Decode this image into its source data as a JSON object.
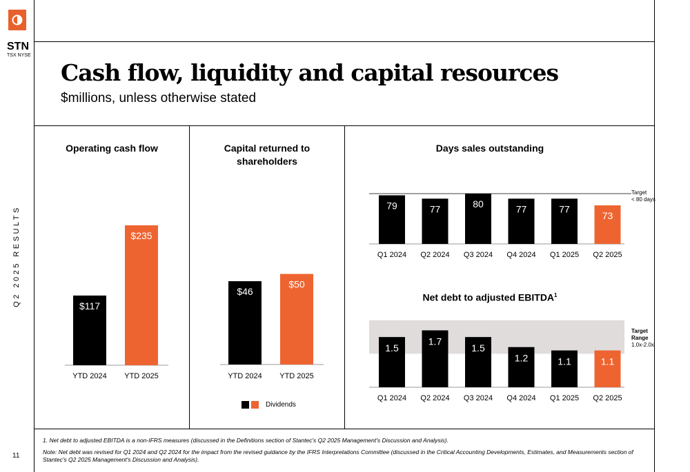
{
  "brand": {
    "ticker": "STN",
    "exchanges": "TSX NYSE",
    "logo_color": "#e8612c"
  },
  "side_label": "Q2 2025 RESULTS",
  "page_number": "11",
  "header": {
    "title": "Cash flow, liquidity and capital resources",
    "subtitle": "$millions, unless otherwise stated"
  },
  "colors": {
    "accent": "#ee6431",
    "bar": "#000000",
    "band": "#e0dcdb"
  },
  "legend": {
    "label": "Dividends"
  },
  "footnote": "1.    Net debt to adjusted EBITDA is a non-IFRS measures (discussed in the Definitions section of Stantec's Q2 2025 Management's Discussion and Analysis).",
  "note": "Note: Net debt was revised for Q1 2024 and Q2 2024 for the impact from the revised guidance by the IFRS Interpretations Committee (discussed in the Critical Accounting Developments, Estimates, and Measurements section of Stantec's Q2 2025 Management's Discussion and Analysis).",
  "chart_data": [
    {
      "type": "bar",
      "title": "Operating cash flow",
      "categories": [
        "YTD 2024",
        "YTD 2025"
      ],
      "values": [
        117,
        235
      ],
      "labels": [
        "$117",
        "$235"
      ],
      "ylim": [
        0,
        250
      ]
    },
    {
      "type": "bar",
      "title": "Capital returned to shareholders",
      "categories": [
        "YTD 2024",
        "YTD 2025"
      ],
      "values": [
        46,
        50
      ],
      "labels": [
        "$46",
        "$50"
      ],
      "ylim": [
        0,
        70
      ]
    },
    {
      "type": "bar",
      "title": "Days sales outstanding",
      "categories": [
        "Q1 2024",
        "Q2 2024",
        "Q3 2024",
        "Q4 2024",
        "Q1 2025",
        "Q2 2025"
      ],
      "values": [
        79,
        77,
        80,
        77,
        77,
        73
      ],
      "labels": [
        "79",
        "77",
        "80",
        "77",
        "77",
        "73"
      ],
      "ylim": [
        50,
        80
      ],
      "target_line": {
        "value": 80,
        "label_line1": "Target",
        "label_line2": "< 80 days"
      }
    },
    {
      "type": "bar",
      "title": "Net debt to adjusted EBITDA",
      "title_superscript": "1",
      "categories": [
        "Q1 2024",
        "Q2 2024",
        "Q3 2024",
        "Q4 2024",
        "Q1 2025",
        "Q2 2025"
      ],
      "values": [
        1.5,
        1.7,
        1.5,
        1.2,
        1.1,
        1.1
      ],
      "labels": [
        "1.5",
        "1.7",
        "1.5",
        "1.2",
        "1.1",
        "1.1"
      ],
      "ylim": [
        0,
        2.1
      ],
      "target_band": {
        "range": [
          1.0,
          2.0
        ],
        "label_line1": "Target",
        "label_line2": "Range",
        "label_line3": "1.0x-2.0x"
      }
    }
  ]
}
